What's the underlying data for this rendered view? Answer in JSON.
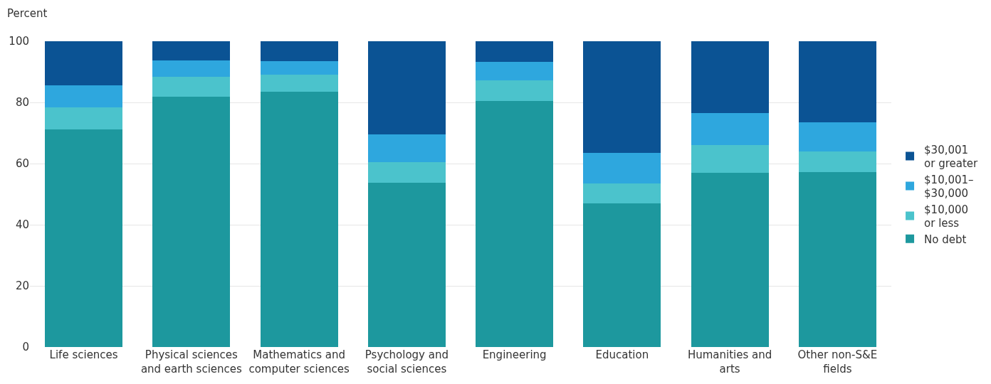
{
  "chart_data": {
    "type": "bar",
    "stacked": true,
    "ylabel": "Percent",
    "categories": [
      "Life sciences",
      "Physical sciences and earth sciences",
      "Mathematics and computer sciences",
      "Psychology and social sciences",
      "Engineering",
      "Education",
      "Humanities and arts",
      "Other non-S&E fields"
    ],
    "series": [
      {
        "name": "No debt",
        "color": "#1d989e",
        "values": [
          71.2,
          81.9,
          83.5,
          53.7,
          80.4,
          47.0,
          57.0,
          57.2
        ]
      },
      {
        "name": "$10,000 or less",
        "color": "#4bc3cc",
        "values": [
          7.2,
          6.5,
          5.6,
          6.8,
          6.9,
          6.5,
          9.0,
          6.7
        ]
      },
      {
        "name": "$10,001–$30,000",
        "color": "#2ea7de",
        "values": [
          7.2,
          5.4,
          4.3,
          9.1,
          6.0,
          10.0,
          10.4,
          9.6
        ]
      },
      {
        "name": "$30,001 or greater",
        "color": "#0b5394",
        "values": [
          14.4,
          6.2,
          6.6,
          30.4,
          6.7,
          36.5,
          23.6,
          26.5
        ]
      }
    ],
    "ylim": [
      0,
      100
    ],
    "yticks": [
      0,
      20,
      40,
      60,
      80,
      100
    ],
    "grid": "y",
    "legend": "right"
  }
}
